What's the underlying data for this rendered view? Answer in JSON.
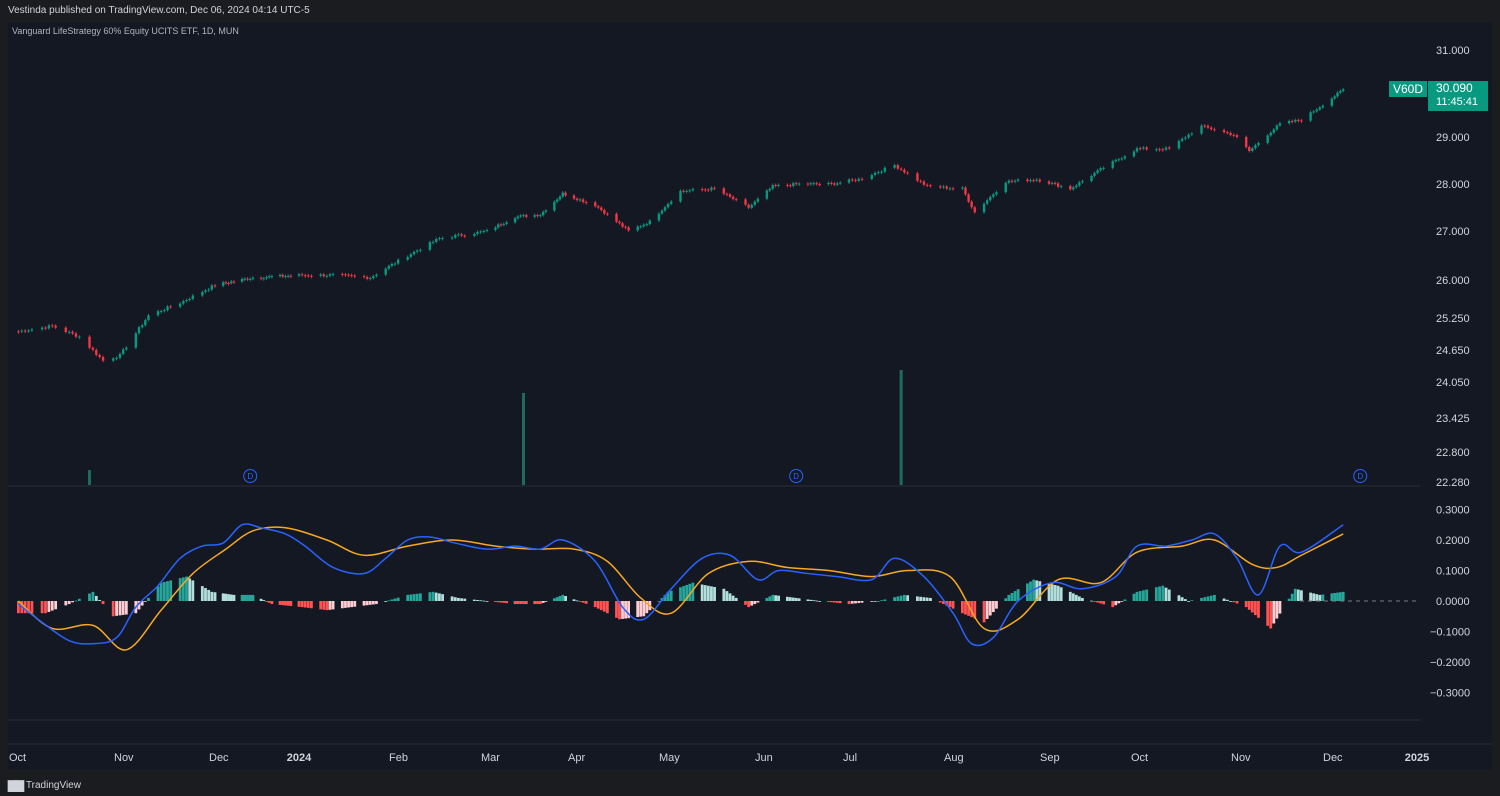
{
  "header": {
    "published": "Vestinda published on TradingView.com, Dec 06, 2024 04:14 UTC-5"
  },
  "symbol_line": "Vanguard LifeStrategy 60% Equity UCITS ETF, 1D, MUN",
  "badge": {
    "symbol": "V60D",
    "price": "30.090",
    "countdown": "11:45:41"
  },
  "footer": {
    "brand": "TradingView",
    "logo": "tradingview-logo-icon"
  },
  "colors": {
    "up": "#089981",
    "down": "#f23645",
    "macd": "#2962ff",
    "signal": "#f7a823",
    "hist_up_strong": "#26a69a",
    "hist_up_weak": "#b2dfdb",
    "hist_down_strong": "#ff5252",
    "hist_down_weak": "#ffcdd2"
  },
  "chart_data": [
    {
      "type": "candlestick",
      "title": "Vanguard LifeStrategy 60% Equity UCITS ETF, 1D, MUN",
      "y_ticks": [
        "31.000",
        "29.000",
        "28.000",
        "27.000",
        "26.000",
        "25.250",
        "24.650",
        "24.050",
        "23.425",
        "22.800",
        "22.280"
      ],
      "y_tick_values": [
        31.0,
        29.0,
        28.0,
        27.0,
        26.0,
        25.25,
        24.65,
        24.05,
        23.425,
        22.8,
        22.28
      ],
      "x_labels": [
        "Oct",
        "Nov",
        "Dec",
        "2024",
        "Feb",
        "Mar",
        "Apr",
        "May",
        "Jun",
        "Jul",
        "Aug",
        "Sep",
        "Oct",
        "Nov",
        "Dec",
        "2025"
      ],
      "last_price": 30.09,
      "close_series": {
        "dates": [
          "2023-10-02",
          "2023-10-12",
          "2023-10-20",
          "2023-10-27",
          "2023-11-01",
          "2023-11-10",
          "2023-11-20",
          "2023-12-01",
          "2023-12-15",
          "2024-01-02",
          "2024-01-12",
          "2024-01-24",
          "2024-02-05",
          "2024-02-15",
          "2024-03-01",
          "2024-03-11",
          "2024-03-20",
          "2024-03-28",
          "2024-04-08",
          "2024-04-19",
          "2024-04-26",
          "2024-05-06",
          "2024-05-17",
          "2024-05-28",
          "2024-06-05",
          "2024-06-14",
          "2024-06-25",
          "2024-07-04",
          "2024-07-15",
          "2024-07-25",
          "2024-08-05",
          "2024-08-09",
          "2024-08-19",
          "2024-08-29",
          "2024-09-09",
          "2024-09-20",
          "2024-10-01",
          "2024-10-11",
          "2024-10-21",
          "2024-10-31",
          "2024-11-05",
          "2024-11-15",
          "2024-11-22",
          "2024-12-06"
        ],
        "values": [
          25.0,
          25.1,
          24.9,
          24.45,
          24.55,
          25.3,
          25.55,
          25.9,
          26.05,
          26.1,
          26.1,
          26.05,
          26.5,
          26.85,
          27.0,
          27.3,
          27.35,
          27.8,
          27.55,
          27.0,
          27.2,
          27.85,
          27.9,
          27.5,
          27.95,
          28.0,
          28.0,
          28.1,
          28.4,
          27.95,
          27.9,
          27.4,
          28.05,
          28.1,
          27.9,
          28.35,
          28.75,
          28.75,
          29.25,
          29.05,
          28.7,
          29.3,
          29.4,
          30.09
        ]
      },
      "dividends": [
        {
          "date": "2023-12-14",
          "label": "D"
        },
        {
          "date": "2024-06-13",
          "label": "D"
        },
        {
          "date": "2024-12-12",
          "label": "D"
        }
      ],
      "volume": {
        "dates": [
          "2023-10-23",
          "2024-03-14",
          "2024-07-17"
        ],
        "values": [
          0.13,
          0.8,
          1.0
        ],
        "note": "relative volume spikes"
      }
    },
    {
      "type": "line",
      "title": "",
      "y_ticks": [
        "0.3000",
        "0.2000",
        "0.1000",
        "0.0000",
        "−0.1000",
        "−0.2000",
        "−0.3000"
      ],
      "y_tick_values": [
        0.3,
        0.2,
        0.1,
        0.0,
        -0.1,
        -0.2,
        -0.3
      ],
      "series": [
        {
          "key": "macd",
          "dates": [
            "2023-10-02",
            "2023-10-09",
            "2023-10-17",
            "2023-10-24",
            "2023-10-31",
            "2023-11-06",
            "2023-11-13",
            "2023-11-20",
            "2023-11-27",
            "2023-12-04",
            "2023-12-11",
            "2023-12-18",
            "2023-12-27",
            "2024-01-03",
            "2024-01-12",
            "2024-01-22",
            "2024-01-29",
            "2024-02-05",
            "2024-02-12",
            "2024-02-20",
            "2024-03-01",
            "2024-03-11",
            "2024-03-20",
            "2024-03-28",
            "2024-04-08",
            "2024-04-17",
            "2024-04-24",
            "2024-05-03",
            "2024-05-13",
            "2024-05-22",
            "2024-05-31",
            "2024-06-07",
            "2024-06-17",
            "2024-06-27",
            "2024-07-08",
            "2024-07-15",
            "2024-07-24",
            "2024-08-02",
            "2024-08-08",
            "2024-08-15",
            "2024-08-23",
            "2024-09-03",
            "2024-09-13",
            "2024-09-24",
            "2024-10-01",
            "2024-10-10",
            "2024-10-18",
            "2024-10-25",
            "2024-11-01",
            "2024-11-08",
            "2024-11-15",
            "2024-11-22",
            "2024-12-06"
          ],
          "values": [
            -0.01,
            -0.07,
            -0.13,
            -0.14,
            -0.12,
            -0.02,
            0.05,
            0.14,
            0.18,
            0.19,
            0.25,
            0.24,
            0.22,
            0.18,
            0.11,
            0.09,
            0.14,
            0.2,
            0.21,
            0.19,
            0.17,
            0.18,
            0.17,
            0.2,
            0.13,
            -0.02,
            -0.06,
            0.04,
            0.14,
            0.15,
            0.07,
            0.1,
            0.09,
            0.08,
            0.07,
            0.14,
            0.08,
            -0.04,
            -0.14,
            -0.12,
            0.0,
            0.06,
            0.04,
            0.08,
            0.18,
            0.18,
            0.2,
            0.22,
            0.14,
            0.02,
            0.18,
            0.16,
            0.25
          ]
        },
        {
          "key": "signal",
          "dates": [
            "2023-10-02",
            "2023-10-12",
            "2023-10-24",
            "2023-11-03",
            "2023-11-14",
            "2023-11-24",
            "2023-12-05",
            "2023-12-15",
            "2023-12-27",
            "2024-01-10",
            "2024-01-22",
            "2024-02-05",
            "2024-02-19",
            "2024-03-04",
            "2024-03-18",
            "2024-04-01",
            "2024-04-12",
            "2024-04-23",
            "2024-05-03",
            "2024-05-15",
            "2024-05-28",
            "2024-06-10",
            "2024-06-24",
            "2024-07-08",
            "2024-07-19",
            "2024-08-01",
            "2024-08-12",
            "2024-08-23",
            "2024-09-05",
            "2024-09-19",
            "2024-10-01",
            "2024-10-15",
            "2024-10-25",
            "2024-11-06",
            "2024-11-14",
            "2024-11-22",
            "2024-12-06"
          ],
          "values": [
            0.0,
            -0.09,
            -0.08,
            -0.16,
            -0.03,
            0.09,
            0.17,
            0.23,
            0.24,
            0.2,
            0.15,
            0.18,
            0.2,
            0.18,
            0.17,
            0.17,
            0.13,
            0.01,
            -0.04,
            0.09,
            0.13,
            0.11,
            0.1,
            0.08,
            0.1,
            0.08,
            -0.09,
            -0.06,
            0.07,
            0.06,
            0.16,
            0.18,
            0.2,
            0.12,
            0.11,
            0.15,
            0.22
          ]
        },
        {
          "key": "histogram",
          "dates": [
            "2023-10-02",
            "2023-10-10",
            "2023-10-17",
            "2023-10-24",
            "2023-10-30",
            "2023-11-06",
            "2023-11-14",
            "2023-11-22",
            "2023-11-30",
            "2023-12-08",
            "2023-12-15",
            "2023-12-22",
            "2024-01-02",
            "2024-01-10",
            "2024-01-18",
            "2024-01-26",
            "2024-02-05",
            "2024-02-13",
            "2024-02-21",
            "2024-03-01",
            "2024-03-11",
            "2024-03-20",
            "2024-03-28",
            "2024-04-08",
            "2024-04-16",
            "2024-04-24",
            "2024-05-02",
            "2024-05-10",
            "2024-05-20",
            "2024-05-28",
            "2024-06-05",
            "2024-06-13",
            "2024-06-21",
            "2024-07-01",
            "2024-07-10",
            "2024-07-18",
            "2024-07-26",
            "2024-08-05",
            "2024-08-12",
            "2024-08-20",
            "2024-08-28",
            "2024-09-05",
            "2024-09-13",
            "2024-09-23",
            "2024-10-01",
            "2024-10-09",
            "2024-10-17",
            "2024-10-25",
            "2024-11-04",
            "2024-11-12",
            "2024-11-20",
            "2024-11-28",
            "2024-12-06"
          ],
          "values": [
            -0.04,
            -0.04,
            -0.01,
            0.03,
            -0.05,
            -0.04,
            0.06,
            0.08,
            0.03,
            0.02,
            0.02,
            -0.01,
            -0.02,
            -0.03,
            -0.02,
            -0.01,
            0.02,
            0.03,
            0.01,
            0.0,
            -0.01,
            -0.01,
            0.02,
            -0.02,
            -0.06,
            -0.05,
            0.03,
            0.06,
            0.04,
            -0.02,
            0.02,
            0.01,
            0.0,
            -0.01,
            0.0,
            0.02,
            0.01,
            -0.04,
            -0.07,
            0.02,
            0.07,
            0.05,
            0.01,
            -0.02,
            0.03,
            0.05,
            0.0,
            0.02,
            -0.02,
            -0.09,
            0.04,
            0.02,
            0.03
          ]
        }
      ]
    }
  ]
}
